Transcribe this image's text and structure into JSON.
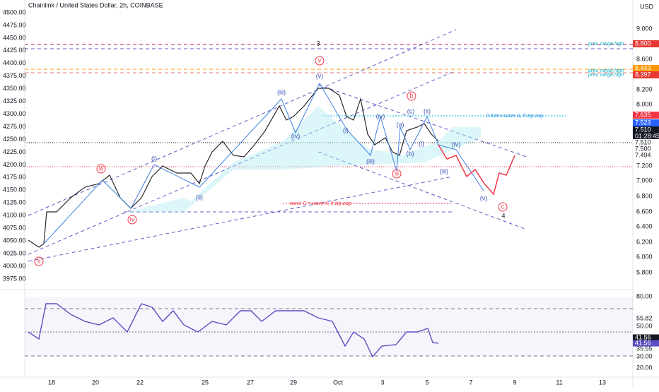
{
  "header": {
    "title": "Chainlink / United States Dollar, 2h, COINBASE",
    "currency": "USD"
  },
  "left_axis": [
    "4500.00",
    "4475.00",
    "4450.00",
    "4425.00",
    "4400.00",
    "4375.00",
    "4350.00",
    "4325.00",
    "4300.00",
    "4275.00",
    "4250.00",
    "4225.00",
    "4200.00",
    "4175.00",
    "4150.00",
    "4125.00",
    "4100.00",
    "4075.00",
    "4050.00",
    "4025.00",
    "4000.00",
    "3975.00"
  ],
  "right_axis": [
    "9.000",
    "8.600",
    "8.200",
    "8.000",
    "7.200",
    "7.000",
    "6.800",
    "6.600",
    "6.400",
    "6.200",
    "6.000",
    "5.800"
  ],
  "price_tags": [
    {
      "label": "8.800",
      "color": "#e53935"
    },
    {
      "label": "8.443",
      "color": "#ff9800"
    },
    {
      "label": "8.397",
      "color": "#e53935"
    },
    {
      "label": "7.635",
      "color": "#f23645"
    },
    {
      "label": "7.523",
      "color": "#2962ff"
    },
    {
      "label": "7.510",
      "color": "#131722"
    },
    {
      "label": "01:28:45",
      "color": "#131722"
    },
    {
      "label": "7.510",
      "color": "#ffffff"
    },
    {
      "label": "7.500",
      "color": "#ffffff"
    },
    {
      "label": "7.494",
      "color": "#ffffff"
    }
  ],
  "rsi_axis": [
    "80.00",
    "55.82",
    "50.00",
    "35.55",
    "30.00",
    "20.00"
  ],
  "rsi_tags": [
    "41.56",
    "41.56"
  ],
  "x_axis": [
    "18",
    "20",
    "22",
    "25",
    "27",
    "29",
    "Oct",
    "3",
    "5",
    "7",
    "9",
    "11",
    "13"
  ],
  "annotations": [
    "3",
    "v",
    "(v)",
    "(iii)",
    "(iv)",
    "(i)",
    "(ii)",
    "iii",
    "iv",
    "ii",
    "b",
    "(c)",
    "(ii)",
    "(iv)",
    "(i)",
    "(a)",
    "(b)",
    "(iii)",
    "iii",
    "(i)",
    "(iv)",
    "(iii)",
    "(v)",
    "c",
    "4"
  ],
  "notes": [
    "0.618 x wave A, if zig-zag.",
    "wave C = wave A, if zig-zag.",
    "prev. range high",
    "prev. range high",
    "prev. range high"
  ]
}
